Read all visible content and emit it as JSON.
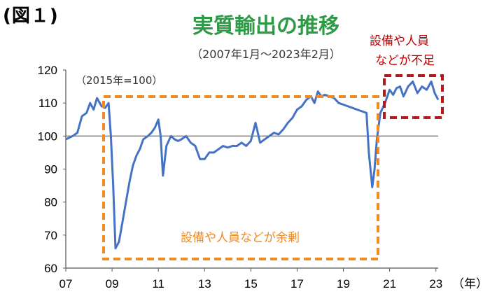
{
  "figure_label": "(図１)",
  "chart_data": {
    "type": "line",
    "title": "実質輸出の推移",
    "subtitle": "（2007年1月～2023年2月）",
    "base_note": "（2015年=100）",
    "xlabel": "（年）",
    "ylabel": "",
    "ylim": [
      60,
      120
    ],
    "xlim": [
      2007.0,
      2023.1
    ],
    "y_ticks": [
      "60",
      "70",
      "80",
      "90",
      "100",
      "110",
      "120"
    ],
    "x_ticks": [
      "07",
      "09",
      "11",
      "13",
      "15",
      "17",
      "19",
      "21",
      "23"
    ],
    "grid": false,
    "reference_line": 100,
    "line_color": "#4472c4",
    "annotations": [
      {
        "text": "設備や人員などが余剰",
        "color": "#f08a24"
      },
      {
        "text_lines": [
          "設備や人員",
          "などが不足"
        ],
        "color": "#c00000"
      }
    ],
    "series": [
      {
        "x": [
          2007.0,
          2007.15,
          2007.3,
          2007.5,
          2007.7,
          2007.9,
          2008.05,
          2008.2,
          2008.35,
          2008.55,
          2008.7,
          2008.85,
          2008.95,
          2009.05,
          2009.15,
          2009.3,
          2009.45,
          2009.6,
          2009.75,
          2009.9,
          2010.05,
          2010.2,
          2010.35,
          2010.55,
          2010.7,
          2010.85,
          2011.0,
          2011.1,
          2011.2,
          2011.35,
          2011.55,
          2011.7,
          2011.85,
          2012.0,
          2012.2,
          2012.4,
          2012.6,
          2012.8,
          2013.0,
          2013.2,
          2013.4,
          2013.6,
          2013.8,
          2014.0,
          2014.2,
          2014.4,
          2014.6,
          2014.8,
          2015.0,
          2015.2,
          2015.4,
          2015.6,
          2015.8,
          2016.0,
          2016.2,
          2016.4,
          2016.6,
          2016.8,
          2017.0,
          2017.2,
          2017.4,
          2017.6,
          2017.75,
          2017.9,
          2018.05,
          2018.2,
          2018.4,
          2018.6,
          2018.8,
          2019.0,
          2019.2,
          2019.4,
          2019.6,
          2019.8,
          2020.0,
          2020.1,
          2020.25,
          2020.35,
          2020.45,
          2020.6,
          2020.8,
          2021.0,
          2021.15,
          2021.3,
          2021.45,
          2021.6,
          2021.8,
          2022.0,
          2022.2,
          2022.4,
          2022.6,
          2022.8,
          2022.95,
          2023.1
        ],
        "y": [
          99,
          99.5,
          100,
          101,
          106,
          107,
          110,
          108,
          111.5,
          109,
          108.5,
          110,
          100,
          85,
          66,
          68,
          74,
          80,
          86,
          91,
          94,
          96,
          99,
          100,
          101,
          102.5,
          105,
          100,
          88,
          97,
          100,
          99,
          98.5,
          99,
          100,
          98,
          97,
          93,
          93,
          95,
          95,
          96,
          97,
          96.5,
          97,
          97,
          98,
          97,
          98.5,
          104,
          98,
          99,
          100,
          101,
          100.5,
          102,
          104,
          105.5,
          108,
          109,
          111,
          112,
          110,
          113.5,
          112,
          112.5,
          112,
          111.5,
          110,
          109.5,
          109,
          108.5,
          108,
          107.5,
          107,
          95,
          84.5,
          90,
          99,
          107,
          110,
          114,
          112.5,
          114.5,
          115,
          112,
          115,
          116.5,
          113,
          115,
          114,
          116.5,
          113,
          111
        ]
      }
    ]
  }
}
